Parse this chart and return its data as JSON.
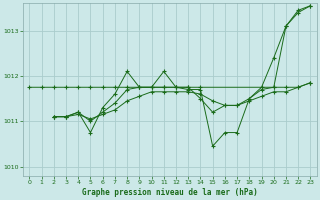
{
  "background_color": "#cce8e8",
  "grid_color": "#aacccc",
  "line_color": "#1a6b1a",
  "text_color": "#1a6b1a",
  "xlabel": "Graphe pression niveau de la mer (hPa)",
  "ylim": [
    1009.8,
    1013.6
  ],
  "xlim": [
    -0.5,
    23.5
  ],
  "yticks": [
    1010,
    1011,
    1012,
    1013
  ],
  "xticks": [
    0,
    1,
    2,
    3,
    4,
    5,
    6,
    7,
    8,
    9,
    10,
    11,
    12,
    13,
    14,
    15,
    16,
    17,
    18,
    19,
    20,
    21,
    22,
    23
  ],
  "series1_x": [
    0,
    1,
    2,
    3,
    4,
    5,
    6,
    7,
    8,
    9,
    10,
    11,
    12,
    13,
    14,
    20,
    21,
    22,
    23
  ],
  "series1_y": [
    1011.75,
    1011.75,
    1011.75,
    1011.75,
    1011.75,
    1011.75,
    1011.75,
    1011.75,
    1011.75,
    1011.75,
    1011.75,
    1011.75,
    1011.75,
    1011.75,
    1011.75,
    1011.75,
    1013.1,
    1013.4,
    1013.55
  ],
  "series2_x": [
    2,
    3,
    4,
    5,
    6,
    7,
    8,
    9,
    10,
    11,
    12,
    13,
    14,
    15,
    16,
    17,
    18,
    19,
    20,
    21,
    22,
    23
  ],
  "series2_y": [
    1011.1,
    1011.1,
    1011.2,
    1010.75,
    1011.3,
    1011.6,
    1012.1,
    1011.75,
    1011.75,
    1012.1,
    1011.75,
    1011.7,
    1011.7,
    1010.45,
    1010.75,
    1010.75,
    1011.5,
    1011.75,
    1012.4,
    1013.1,
    1013.45,
    1013.55
  ],
  "series3_x": [
    2,
    3,
    4,
    5,
    6,
    7,
    8,
    9,
    10,
    11,
    12,
    13,
    14,
    15,
    16,
    17,
    18,
    19,
    20,
    21,
    22,
    23
  ],
  "series3_y": [
    1011.1,
    1011.1,
    1011.2,
    1011.0,
    1011.2,
    1011.4,
    1011.7,
    1011.75,
    1011.75,
    1011.75,
    1011.75,
    1011.75,
    1011.5,
    1011.2,
    1011.35,
    1011.35,
    1011.5,
    1011.7,
    1011.75,
    1011.75,
    1011.75,
    1011.85
  ],
  "series4_x": [
    2,
    3,
    4,
    5,
    6,
    7,
    8,
    9,
    10,
    11,
    12,
    13,
    14,
    15,
    16,
    17,
    18,
    19,
    20,
    21,
    22,
    23
  ],
  "series4_y": [
    1011.1,
    1011.1,
    1011.15,
    1011.05,
    1011.15,
    1011.25,
    1011.45,
    1011.55,
    1011.65,
    1011.65,
    1011.65,
    1011.65,
    1011.6,
    1011.45,
    1011.35,
    1011.35,
    1011.45,
    1011.55,
    1011.65,
    1011.65,
    1011.75,
    1011.85
  ]
}
